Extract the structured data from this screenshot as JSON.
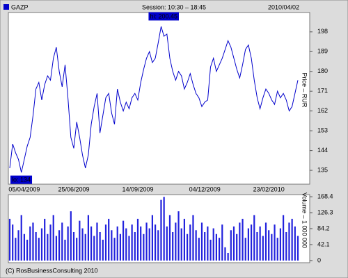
{
  "header": {
    "ticker": "GAZP",
    "session": "Session: 10:30 – 18:45",
    "date": "2010/04/02"
  },
  "footer": "(C) RosBusinessConsulting 2010",
  "chart_data": [
    {
      "type": "line",
      "y_label": "Price – RUR",
      "color": "#0000cc",
      "categories": [
        null,
        null,
        null,
        null,
        null,
        "05/04/2009",
        null,
        null,
        null,
        null,
        null,
        null,
        null,
        null,
        null,
        null,
        null,
        null,
        null,
        null,
        null,
        null,
        "25/06/2009",
        null,
        null,
        null,
        null,
        null,
        null,
        null,
        null,
        null,
        null,
        null,
        null,
        null,
        null,
        null,
        null,
        null,
        null,
        null,
        null,
        null,
        "14/09/2009",
        null,
        null,
        null,
        null,
        null,
        null,
        null,
        null,
        null,
        null,
        null,
        null,
        null,
        null,
        null,
        null,
        null,
        null,
        null,
        null,
        null,
        null,
        "04/12/2009",
        null,
        null,
        null,
        null,
        null,
        null,
        null,
        null,
        null,
        null,
        null,
        null,
        null,
        null,
        null,
        null,
        null,
        null,
        null,
        null,
        null,
        "23/02/2010",
        null,
        null,
        null,
        null,
        null,
        null,
        null,
        null,
        null,
        null
      ],
      "values": [
        136,
        147,
        143,
        140,
        134,
        140,
        146,
        150,
        160,
        172,
        175,
        167,
        174,
        178,
        176,
        186,
        191,
        180,
        173,
        183,
        168,
        150,
        145,
        157,
        150,
        142,
        136,
        142,
        156,
        164,
        170,
        152,
        160,
        168,
        170,
        161,
        156,
        172,
        166,
        162,
        166,
        163,
        168,
        170,
        167,
        175,
        181,
        186,
        189,
        184,
        186,
        193,
        200.45,
        196,
        197,
        186,
        180,
        176,
        180,
        178,
        172,
        175,
        179,
        174,
        170,
        168,
        164,
        166,
        167,
        182,
        186,
        180,
        183,
        186,
        190,
        194,
        191,
        186,
        181,
        177,
        183,
        190,
        192,
        186,
        176,
        168,
        163,
        168,
        172,
        170,
        167,
        165,
        171,
        168,
        170,
        167,
        162,
        164,
        170,
        176
      ],
      "annotations": [
        "hi: 200.45",
        "lo: 134"
      ],
      "ylim": [
        128.7,
        206.8
      ],
      "yticks": [
        135,
        144,
        153,
        162,
        171,
        180,
        189,
        198
      ]
    },
    {
      "type": "bar",
      "y_label": "Volume – 1 000 000",
      "color": "#2222dd",
      "values": [
        110,
        95,
        60,
        80,
        120,
        70,
        55,
        90,
        100,
        75,
        60,
        85,
        110,
        70,
        95,
        120,
        65,
        80,
        100,
        55,
        90,
        130,
        75,
        60,
        105,
        85,
        70,
        120,
        90,
        65,
        100,
        75,
        55,
        95,
        110,
        80,
        60,
        90,
        70,
        105,
        85,
        65,
        95,
        75,
        110,
        90,
        70,
        100,
        85,
        120,
        95,
        80,
        160,
        168,
        90,
        120,
        75,
        100,
        130,
        85,
        110,
        70,
        95,
        120,
        80,
        60,
        100,
        75,
        90,
        55,
        85,
        70,
        60,
        95,
        35,
        20,
        80,
        90,
        70,
        100,
        110,
        60,
        85,
        95,
        120,
        75,
        90,
        65,
        100,
        80,
        70,
        95,
        60,
        85,
        120,
        75,
        100,
        110,
        90,
        65
      ],
      "ylim": [
        -5.7,
        174
      ],
      "yticks": [
        0,
        42.1,
        84.2,
        126.3,
        168.4
      ]
    }
  ]
}
